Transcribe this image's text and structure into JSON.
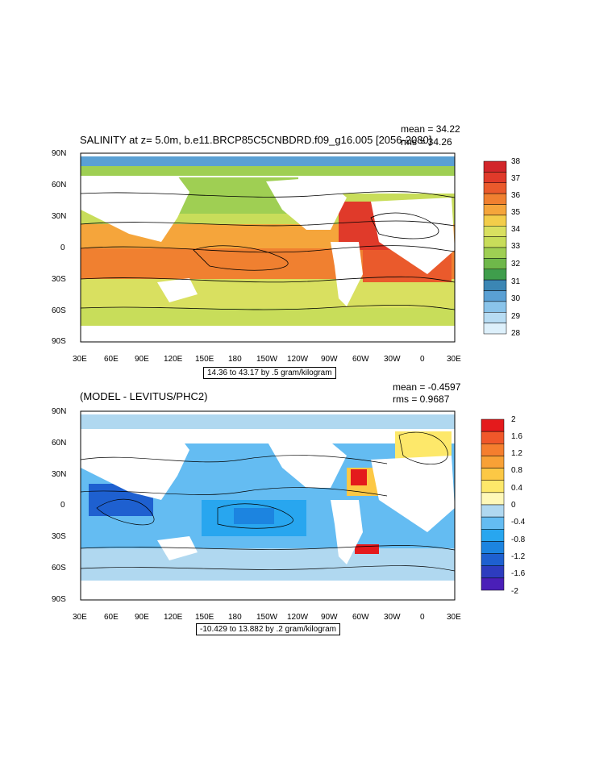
{
  "panel_top": {
    "title": "SALINITY at z=   5.0m, b.e11.BRCP85C5CNBDRD.f09_g16.005 [2056-2080]",
    "mean_text": "mean = 34.22",
    "rms_text": "rms = 34.26",
    "contour_info": "14.36 to 43.17 by .5 gram/kilogram",
    "colorbar_labels": [
      "38",
      "37",
      "36",
      "35",
      "34",
      "33",
      "32",
      "31",
      "30",
      "29",
      "28"
    ],
    "colorbar_colors": [
      "#d2262a",
      "#e03a2a",
      "#ea5a2c",
      "#f08030",
      "#f5a53b",
      "#f3cd4a",
      "#d9e060",
      "#c8dd5a",
      "#9fcf53",
      "#6fb84a",
      "#3f9e4c",
      "#3b86b4",
      "#5aa0d4",
      "#8ac4ea",
      "#b7dcf3",
      "#ddf0fb"
    ]
  },
  "panel_bottom": {
    "title": "(MODEL - LEVITUS/PHC2)",
    "mean_text": "mean = -0.4597",
    "rms_text": "rms = 0.9687",
    "contour_info": "-10.429 to 13.882 by .2 gram/kilogram",
    "colorbar_labels": [
      "2",
      "1.6",
      "1.2",
      "0.8",
      "0.4",
      "0",
      "-0.4",
      "-0.8",
      "-1.2",
      "-1.6",
      "-2"
    ],
    "colorbar_colors": [
      "#e41a1c",
      "#f0572a",
      "#f57e2e",
      "#f8a136",
      "#fcc845",
      "#fde86a",
      "#fff8b8",
      "#b0d8f0",
      "#64bcf2",
      "#28a6ef",
      "#1c84e0",
      "#1e60d0",
      "#2d3cbf",
      "#4a1fb8"
    ]
  },
  "axes": {
    "y_labels": [
      "90N",
      "60N",
      "30N",
      "0",
      "30S",
      "60S",
      "90S"
    ],
    "x_labels": [
      "30E",
      "60E",
      "90E",
      "120E",
      "150E",
      "180",
      "150W",
      "120W",
      "90W",
      "60W",
      "30W",
      "0",
      "30E"
    ]
  }
}
